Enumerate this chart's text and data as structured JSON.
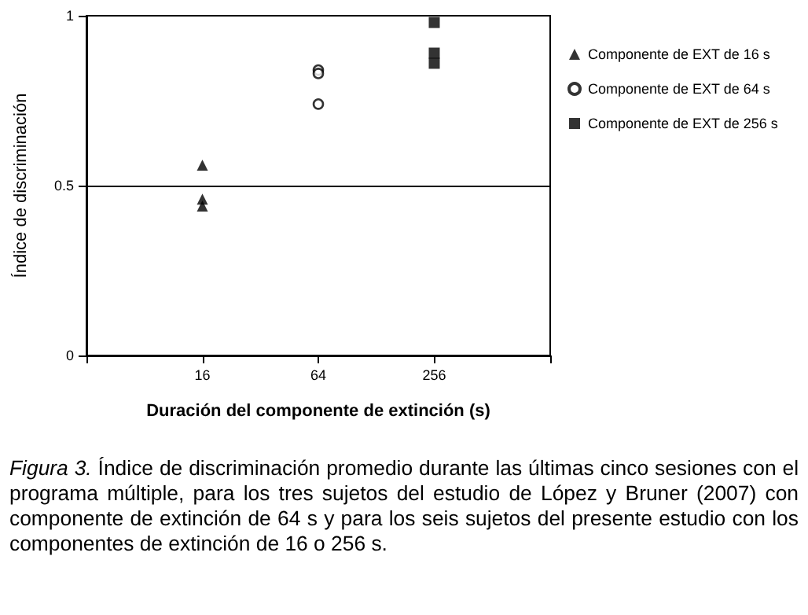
{
  "chart_data": {
    "type": "scatter",
    "categories": [
      null,
      "16",
      "64",
      "256",
      null
    ],
    "xlabel": "Duración del componente de extinción (s)",
    "ylabel": "Índice de discriminación",
    "ylim": [
      0,
      1
    ],
    "yticks": [
      0,
      0.5,
      1
    ],
    "grid": false,
    "legend": "right",
    "series": [
      {
        "name": "Componente de EXT de 16 s",
        "color": "#000000",
        "marker": "triangle",
        "x": [
          "16",
          "16",
          "16"
        ],
        "values": [
          0.56,
          0.46,
          0.44
        ]
      },
      {
        "name": "Componente de EXT de 64 s",
        "color": "#000000",
        "marker": "circle",
        "x": [
          "64",
          "64",
          "64"
        ],
        "values": [
          0.84,
          0.83,
          0.74
        ]
      },
      {
        "name": "Componente de EXT de 256 s",
        "color": "#000000",
        "marker": "square",
        "x": [
          "256",
          "256",
          "256"
        ],
        "values": [
          0.98,
          0.89,
          0.86
        ]
      }
    ],
    "ref_lines": [
      {
        "axis": "y",
        "value": 0.5,
        "color": "#000000"
      }
    ],
    "annotations": [
      "Figura 3. Índice de discriminación promedio durante las últimas cinco sesiones con el programa múltiple, para los tres sujetos del estudio de López y Bruner (2007) con componente de extinción de 64 s y para los seis sujetos del presente estudio con los componentes de extinción de 16 o 256 s."
    ]
  }
}
